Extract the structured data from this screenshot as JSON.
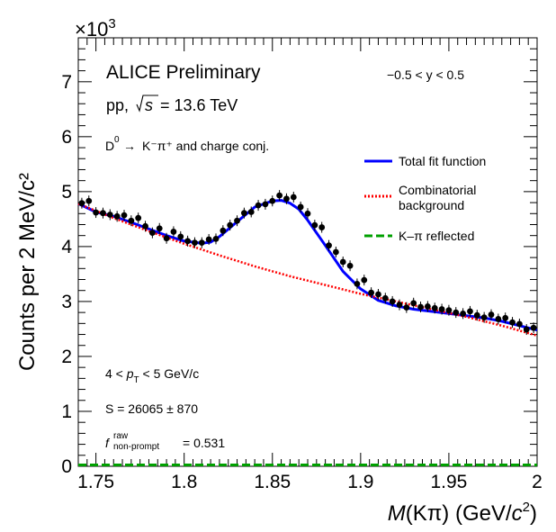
{
  "chart_data": {
    "type": "scatter",
    "experiment_label": "ALICE Preliminary",
    "collision_system": "pp,",
    "energy_label": "= 13.6 TeV",
    "energy_symbol": "s",
    "decay_prefix": "D",
    "decay_text": "K⁻π⁺ and charge conj.",
    "rapidity_label": "−0.5 < y < 0.5",
    "pt_range": {
      "prefix": "4 < ",
      "p": "p",
      "sub": "T",
      "suffix": " < 5 GeV/c"
    },
    "signal_label": "S = 26065 ± 870",
    "fraction_label": {
      "f": "f",
      "sup": "raw",
      "sub": "non-prompt",
      "value": "= 0.531"
    },
    "y_multiplier": "×10",
    "y_multiplier_exp": "3",
    "xlabel": "M(Kπ) (GeV/c²)",
    "xlabel_parts": {
      "m": "M",
      "paren": "(Kπ) (GeV/",
      "c": "c",
      "exp": "2",
      "close": ")"
    },
    "ylabel": "Counts per 2 MeV/c²",
    "xlim": [
      1.74,
      2.0
    ],
    "ylim": [
      0,
      7.8
    ],
    "x_ticks": [
      1.75,
      1.8,
      1.85,
      1.9,
      1.95,
      2.0
    ],
    "x_tick_labels": [
      "1.75",
      "1.8",
      "1.85",
      "1.9",
      "1.95",
      "2"
    ],
    "y_ticks": [
      0,
      1,
      2,
      3,
      4,
      5,
      6,
      7
    ],
    "y_tick_labels": [
      "0",
      "1",
      "2",
      "3",
      "4",
      "5",
      "6",
      "7"
    ],
    "legend": {
      "placement": "right",
      "entries": [
        {
          "label": "Total fit function",
          "color": "#0000ff",
          "style": "solid"
        },
        {
          "label": "Combinatorial",
          "label2": "background",
          "color": "#ff0000",
          "style": "dotted"
        },
        {
          "label": "K–π reflected",
          "color": "#00a000",
          "style": "dashed"
        }
      ]
    },
    "series": [
      {
        "name": "Total fit function",
        "kind": "line",
        "color": "#0000ff",
        "x": [
          1.74,
          1.75,
          1.76,
          1.77,
          1.78,
          1.79,
          1.8,
          1.81,
          1.815,
          1.82,
          1.83,
          1.84,
          1.85,
          1.855,
          1.86,
          1.865,
          1.87,
          1.88,
          1.89,
          1.9,
          1.91,
          1.92,
          1.93,
          1.94,
          1.95,
          1.96,
          1.97,
          1.98,
          1.99,
          2.0
        ],
        "values": [
          4.78,
          4.63,
          4.55,
          4.44,
          4.32,
          4.2,
          4.1,
          4.06,
          4.08,
          4.18,
          4.45,
          4.72,
          4.83,
          4.84,
          4.79,
          4.68,
          4.48,
          4.02,
          3.55,
          3.23,
          3.02,
          2.92,
          2.86,
          2.82,
          2.78,
          2.74,
          2.7,
          2.64,
          2.56,
          2.48
        ]
      },
      {
        "name": "Combinatorial background",
        "kind": "line",
        "color": "#ff0000",
        "x": [
          1.74,
          1.76,
          1.78,
          1.8,
          1.82,
          1.84,
          1.86,
          1.88,
          1.9,
          1.92,
          1.94,
          1.96,
          1.98,
          2.0
        ],
        "values": [
          4.78,
          4.52,
          4.28,
          4.05,
          3.84,
          3.64,
          3.46,
          3.3,
          3.14,
          3.0,
          2.86,
          2.72,
          2.56,
          2.38
        ]
      },
      {
        "name": "K–π reflected",
        "kind": "line",
        "color": "#00a000",
        "x": [
          1.74,
          2.0
        ],
        "values": [
          0.0,
          0.0
        ]
      },
      {
        "name": "Data",
        "kind": "points",
        "color": "#000000",
        "x": [
          1.742,
          1.746,
          1.75,
          1.754,
          1.758,
          1.762,
          1.766,
          1.77,
          1.774,
          1.778,
          1.782,
          1.786,
          1.79,
          1.794,
          1.798,
          1.802,
          1.806,
          1.81,
          1.814,
          1.818,
          1.822,
          1.826,
          1.83,
          1.834,
          1.838,
          1.842,
          1.846,
          1.85,
          1.854,
          1.858,
          1.862,
          1.866,
          1.87,
          1.874,
          1.878,
          1.882,
          1.886,
          1.89,
          1.894,
          1.898,
          1.902,
          1.906,
          1.91,
          1.914,
          1.918,
          1.922,
          1.926,
          1.93,
          1.934,
          1.938,
          1.942,
          1.946,
          1.95,
          1.954,
          1.958,
          1.962,
          1.966,
          1.97,
          1.974,
          1.978,
          1.982,
          1.986,
          1.99,
          1.994,
          1.998
        ],
        "values": [
          4.79,
          4.83,
          4.62,
          4.61,
          4.58,
          4.55,
          4.57,
          4.47,
          4.52,
          4.37,
          4.25,
          4.33,
          4.15,
          4.27,
          4.18,
          4.1,
          4.07,
          4.07,
          4.13,
          4.14,
          4.29,
          4.39,
          4.47,
          4.61,
          4.63,
          4.75,
          4.77,
          4.83,
          4.93,
          4.87,
          4.9,
          4.72,
          4.6,
          4.39,
          4.35,
          4.02,
          3.9,
          3.72,
          3.65,
          3.32,
          3.39,
          3.16,
          3.13,
          3.06,
          3.0,
          2.94,
          2.89,
          2.97,
          2.9,
          2.91,
          2.88,
          2.86,
          2.84,
          2.8,
          2.78,
          2.82,
          2.75,
          2.71,
          2.76,
          2.68,
          2.7,
          2.62,
          2.59,
          2.49,
          2.52
        ]
      }
    ]
  }
}
